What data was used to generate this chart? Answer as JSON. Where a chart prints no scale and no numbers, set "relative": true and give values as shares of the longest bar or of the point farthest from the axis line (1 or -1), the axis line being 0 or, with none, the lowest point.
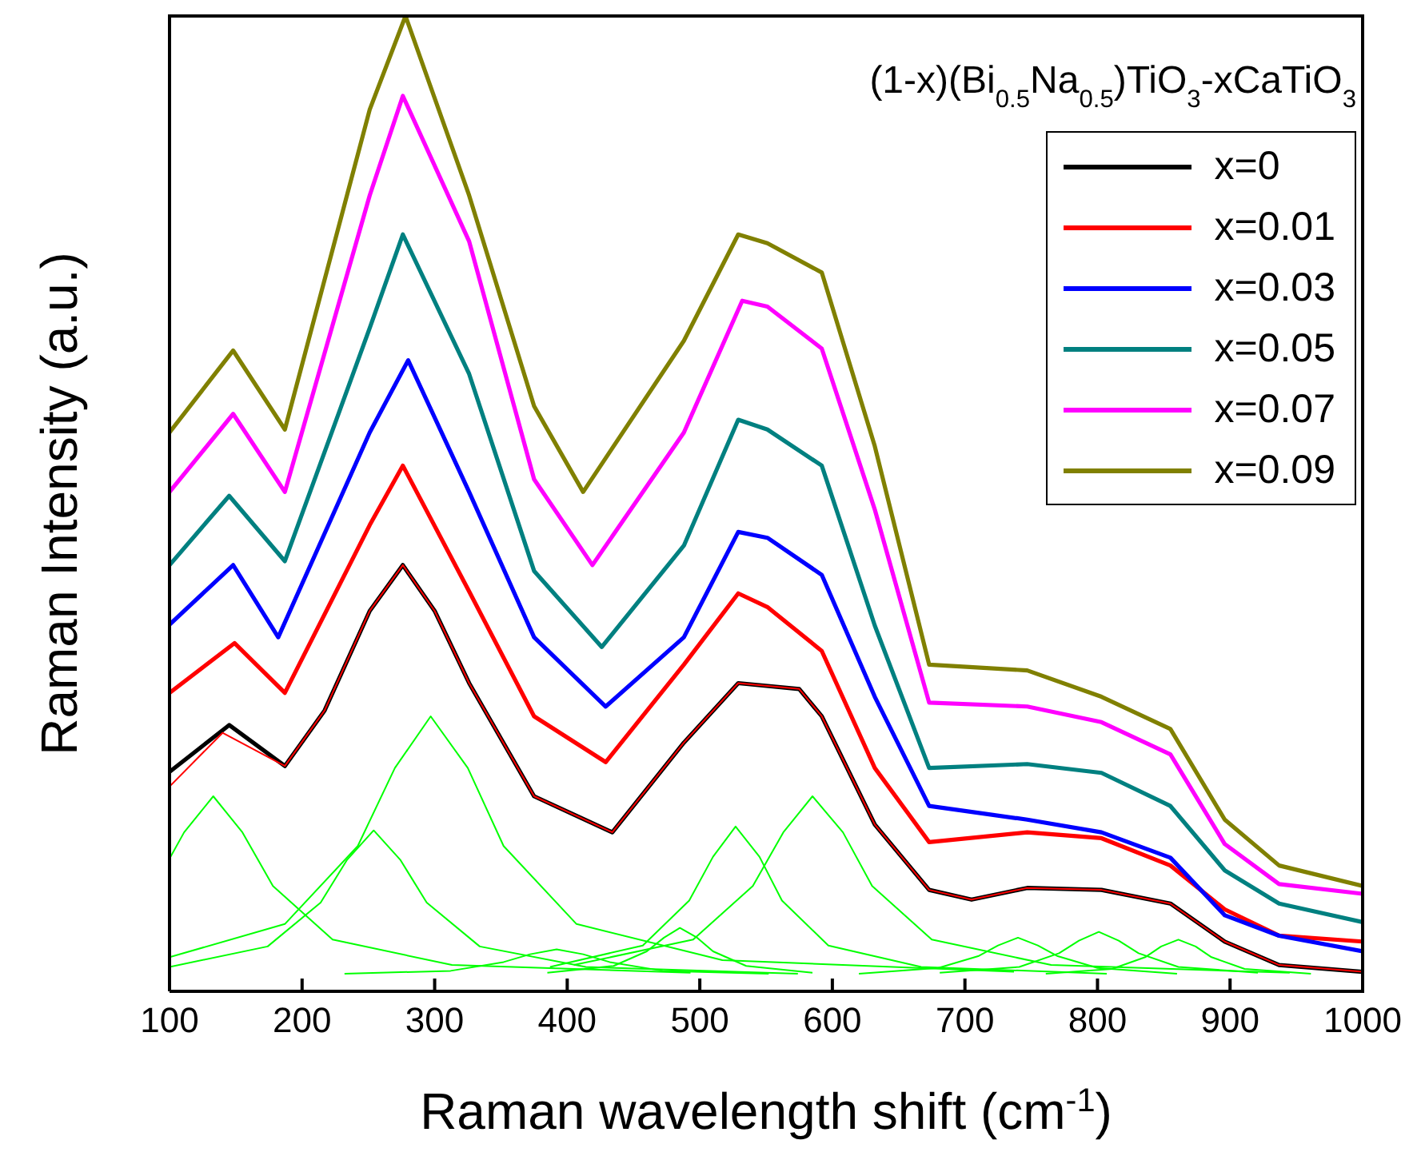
{
  "chart_data": {
    "type": "line",
    "title": "(1-x)(Bi$_{0.5}$Na$_{0.5}$)TiO$_{3}$-xCaTiO$_{3}$",
    "xlabel": "Raman wavelength shift (cm$^{-1}$)",
    "ylabel": "Raman Intensity (a.u.)",
    "relative": true,
    "xlim": [
      100,
      1000
    ],
    "xticks": [
      100,
      200,
      300,
      400,
      500,
      600,
      700,
      800,
      900,
      1000
    ],
    "grid": false,
    "legend": "top right",
    "line_style": "solid",
    "marker": "none",
    "series": [
      {
        "name": "x=0",
        "color": "#000000",
        "x": [
          100,
          145,
          187,
          217,
          251,
          276,
          300,
          326,
          375,
          434,
          488,
          529,
          575,
          592,
          632,
          673,
          705,
          747,
          803,
          855,
          896,
          937,
          1000
        ],
        "values": [
          0.225,
          0.273,
          0.231,
          0.288,
          0.39,
          0.437,
          0.39,
          0.316,
          0.2,
          0.163,
          0.255,
          0.316,
          0.31,
          0.282,
          0.171,
          0.104,
          0.094,
          0.106,
          0.104,
          0.09,
          0.051,
          0.027,
          0.02
        ]
      },
      {
        "name": "x=0.01",
        "color": "#ff0000",
        "x": [
          100,
          149,
          187,
          251,
          276,
          326,
          375,
          429,
          488,
          529,
          551,
          592,
          632,
          673,
          747,
          803,
          855,
          896,
          937,
          1000
        ],
        "values": [
          0.306,
          0.357,
          0.306,
          0.478,
          0.539,
          0.41,
          0.282,
          0.235,
          0.335,
          0.408,
          0.394,
          0.349,
          0.229,
          0.153,
          0.163,
          0.157,
          0.129,
          0.084,
          0.057,
          0.051
        ]
      },
      {
        "name": "x=0.03",
        "color": "#0000ff",
        "x": [
          100,
          148,
          182,
          251,
          280,
          326,
          375,
          429,
          488,
          529,
          551,
          592,
          632,
          673,
          747,
          803,
          855,
          896,
          937,
          1000
        ],
        "values": [
          0.376,
          0.437,
          0.363,
          0.573,
          0.647,
          0.512,
          0.363,
          0.292,
          0.363,
          0.471,
          0.465,
          0.427,
          0.302,
          0.19,
          0.176,
          0.163,
          0.137,
          0.078,
          0.057,
          0.041
        ]
      },
      {
        "name": "x=0.05",
        "color": "#008080",
        "x": [
          100,
          145,
          187,
          251,
          276,
          326,
          375,
          426,
          488,
          529,
          551,
          592,
          632,
          673,
          747,
          803,
          855,
          896,
          937,
          1000
        ],
        "values": [
          0.437,
          0.508,
          0.441,
          0.68,
          0.776,
          0.633,
          0.431,
          0.353,
          0.457,
          0.586,
          0.576,
          0.539,
          0.375,
          0.229,
          0.233,
          0.224,
          0.19,
          0.124,
          0.09,
          0.071
        ]
      },
      {
        "name": "x=0.07",
        "color": "#ff00ff",
        "x": [
          100,
          148,
          187,
          251,
          276,
          326,
          375,
          419,
          488,
          532,
          551,
          592,
          632,
          673,
          747,
          803,
          855,
          896,
          937,
          1000
        ],
        "values": [
          0.512,
          0.592,
          0.512,
          0.816,
          0.918,
          0.769,
          0.525,
          0.437,
          0.573,
          0.708,
          0.702,
          0.659,
          0.494,
          0.296,
          0.292,
          0.276,
          0.243,
          0.151,
          0.11,
          0.1
        ]
      },
      {
        "name": "x=0.09",
        "color": "#808000",
        "x": [
          100,
          148,
          187,
          251,
          278,
          326,
          375,
          412,
          488,
          529,
          551,
          592,
          632,
          673,
          747,
          803,
          855,
          896,
          937,
          1000
        ],
        "values": [
          0.573,
          0.657,
          0.576,
          0.904,
          1,
          0.816,
          0.6,
          0.512,
          0.667,
          0.776,
          0.767,
          0.737,
          0.559,
          0.335,
          0.329,
          0.302,
          0.269,
          0.176,
          0.129,
          0.108
        ]
      },
      {
        "color": "#ff0000",
        "x": [
          100,
          140,
          187,
          217,
          251,
          276,
          300,
          326,
          375,
          434,
          488,
          529,
          575,
          592,
          632,
          673,
          705,
          747,
          803,
          855,
          896,
          937,
          1000
        ],
        "values": [
          0.21,
          0.265,
          0.231,
          0.288,
          0.39,
          0.437,
          0.39,
          0.316,
          0.2,
          0.163,
          0.255,
          0.316,
          0.31,
          0.282,
          0.171,
          0.104,
          0.094,
          0.106,
          0.104,
          0.09,
          0.051,
          0.027,
          0.02
        ]
      },
      {
        "color": "#00ff00",
        "x": [
          100,
          111,
          133,
          155,
          178,
          223,
          313,
          493
        ],
        "values": [
          0.136,
          0.163,
          0.2,
          0.163,
          0.108,
          0.053,
          0.027,
          0.019
        ]
      },
      {
        "color": "#00ff00",
        "x": [
          100,
          174,
          214,
          234,
          254,
          274,
          294,
          334,
          414,
          574
        ],
        "values": [
          0.025,
          0.046,
          0.091,
          0.135,
          0.165,
          0.135,
          0.091,
          0.046,
          0.025,
          0.018
        ]
      },
      {
        "color": "#00ff00",
        "x": [
          100,
          187,
          242,
          270,
          297,
          325,
          352,
          407,
          517,
          737
        ],
        "values": [
          0.035,
          0.069,
          0.149,
          0.229,
          0.282,
          0.229,
          0.149,
          0.069,
          0.032,
          0.02
        ]
      },
      {
        "color": "#00ff00",
        "x": [
          232,
          312,
          352,
          372,
          392,
          412,
          432,
          472,
          552
        ],
        "values": [
          0.018,
          0.021,
          0.03,
          0.038,
          0.043,
          0.038,
          0.03,
          0.021,
          0.018
        ]
      },
      {
        "color": "#00ff00",
        "x": [
          385,
          435,
          460,
          473,
          485,
          498,
          510,
          535,
          585
        ],
        "values": [
          0.019,
          0.026,
          0.041,
          0.055,
          0.065,
          0.055,
          0.041,
          0.026,
          0.019
        ]
      },
      {
        "color": "#00ff00",
        "x": [
          387,
          457,
          492,
          510,
          527,
          545,
          562,
          597,
          667,
          807
        ],
        "values": [
          0.025,
          0.047,
          0.093,
          0.138,
          0.169,
          0.138,
          0.093,
          0.047,
          0.025,
          0.018
        ]
      },
      {
        "color": "#00ff00",
        "x": [
          405,
          495,
          540,
          563,
          585,
          608,
          630,
          675,
          765,
          945
        ],
        "values": [
          0.027,
          0.053,
          0.108,
          0.163,
          0.2,
          0.163,
          0.108,
          0.053,
          0.027,
          0.019
        ]
      },
      {
        "color": "#00ff00",
        "x": [
          620,
          680,
          710,
          725,
          740,
          755,
          770,
          800,
          860
        ],
        "values": [
          0.018,
          0.024,
          0.036,
          0.047,
          0.055,
          0.047,
          0.036,
          0.024,
          0.018
        ]
      },
      {
        "color": "#00ff00",
        "x": [
          681,
          741,
          771,
          786,
          801,
          816,
          831,
          861,
          921
        ],
        "values": [
          0.019,
          0.025,
          0.039,
          0.052,
          0.061,
          0.052,
          0.039,
          0.025,
          0.019
        ]
      },
      {
        "color": "#00ff00",
        "x": [
          761,
          811,
          836,
          848,
          861,
          874,
          886,
          911,
          961
        ],
        "values": [
          0.018,
          0.023,
          0.035,
          0.046,
          0.053,
          0.046,
          0.035,
          0.023,
          0.018
        ]
      }
    ]
  }
}
